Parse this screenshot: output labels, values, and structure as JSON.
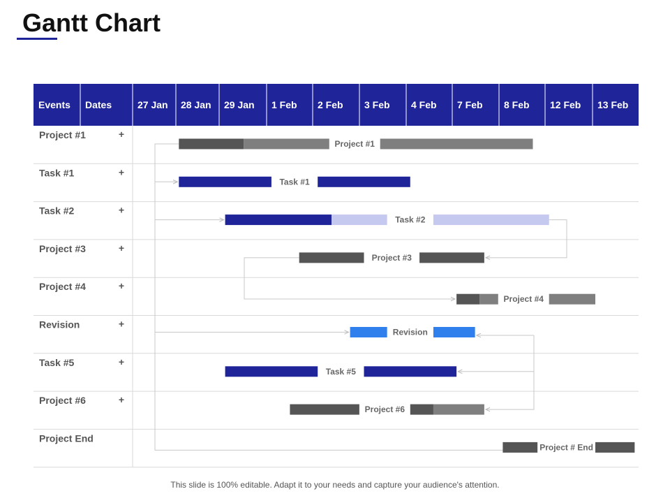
{
  "title": "Gantt Chart",
  "footer": "This slide is 100% editable. Adapt it to your needs and capture your audience's attention.",
  "colors": {
    "header_bg": "#1f2599",
    "accent": "#1f2599",
    "dark_gray": "#555555",
    "mid_gray": "#7f7f7f",
    "light_purple": "#c5c8ef",
    "light_blue": "#2f80ed",
    "connector": "#c8c8c8",
    "grid": "#d9d9d9"
  },
  "chart_data": {
    "type": "gantt",
    "header": [
      "Events",
      "Dates",
      "27 Jan",
      "28 Jan",
      "29 Jan",
      "1 Feb",
      "2 Feb",
      "3 Feb",
      "4 Feb",
      "7 Feb",
      "8 Feb",
      "12 Feb",
      "13 Feb"
    ],
    "rows": [
      {
        "event": "Project #1",
        "expand": "+",
        "bar_label": "Project #1",
        "segments": [
          {
            "start": 1.0,
            "end": 2.4,
            "color": "dark_gray"
          },
          {
            "start": 2.4,
            "end": 4.25,
            "color": "mid_gray"
          },
          {
            "start": 5.35,
            "end": 8.65,
            "color": "mid_gray"
          }
        ]
      },
      {
        "event": "Task #1",
        "expand": "+",
        "bar_label": "Task #1",
        "segments": [
          {
            "start": 1.0,
            "end": 3.0,
            "color": "accent"
          },
          {
            "start": 4.0,
            "end": 6.0,
            "color": "accent"
          }
        ]
      },
      {
        "event": "Task #2",
        "expand": "+",
        "bar_label": "Task #2",
        "segments": [
          {
            "start": 2.0,
            "end": 4.3,
            "color": "accent"
          },
          {
            "start": 4.3,
            "end": 5.5,
            "color": "light_purple"
          },
          {
            "start": 6.5,
            "end": 9.0,
            "color": "light_purple"
          }
        ]
      },
      {
        "event": "Project #3",
        "expand": "+",
        "bar_label": "Project #3",
        "segments": [
          {
            "start": 3.6,
            "end": 5.0,
            "color": "dark_gray"
          },
          {
            "start": 6.2,
            "end": 7.6,
            "color": "dark_gray"
          }
        ]
      },
      {
        "event": "Project #4",
        "expand": "+",
        "bar_label": "Project #4",
        "segments": [
          {
            "start": 7.0,
            "end": 7.5,
            "color": "dark_gray"
          },
          {
            "start": 7.5,
            "end": 7.9,
            "color": "mid_gray"
          },
          {
            "start": 9.0,
            "end": 10.0,
            "color": "mid_gray"
          }
        ]
      },
      {
        "event": "Revision",
        "expand": "+",
        "bar_label": "Revision",
        "segments": [
          {
            "start": 4.7,
            "end": 5.5,
            "color": "light_blue"
          },
          {
            "start": 6.5,
            "end": 7.4,
            "color": "light_blue"
          }
        ]
      },
      {
        "event": "Task #5",
        "expand": "+",
        "bar_label": "Task #5",
        "segments": [
          {
            "start": 2.0,
            "end": 4.0,
            "color": "accent"
          },
          {
            "start": 5.0,
            "end": 7.0,
            "color": "accent"
          }
        ]
      },
      {
        "event": "Project #6",
        "expand": "+",
        "bar_label": "Project #6",
        "segments": [
          {
            "start": 3.4,
            "end": 4.9,
            "color": "dark_gray"
          },
          {
            "start": 6.0,
            "end": 6.5,
            "color": "dark_gray"
          },
          {
            "start": 6.5,
            "end": 7.6,
            "color": "mid_gray"
          }
        ]
      },
      {
        "event": "Project End",
        "expand": "",
        "bar_label": "Project # End",
        "segments": [
          {
            "start": 8.0,
            "end": 8.75,
            "color": "dark_gray"
          },
          {
            "start": 10.0,
            "end": 10.85,
            "color": "dark_gray"
          }
        ]
      }
    ]
  }
}
